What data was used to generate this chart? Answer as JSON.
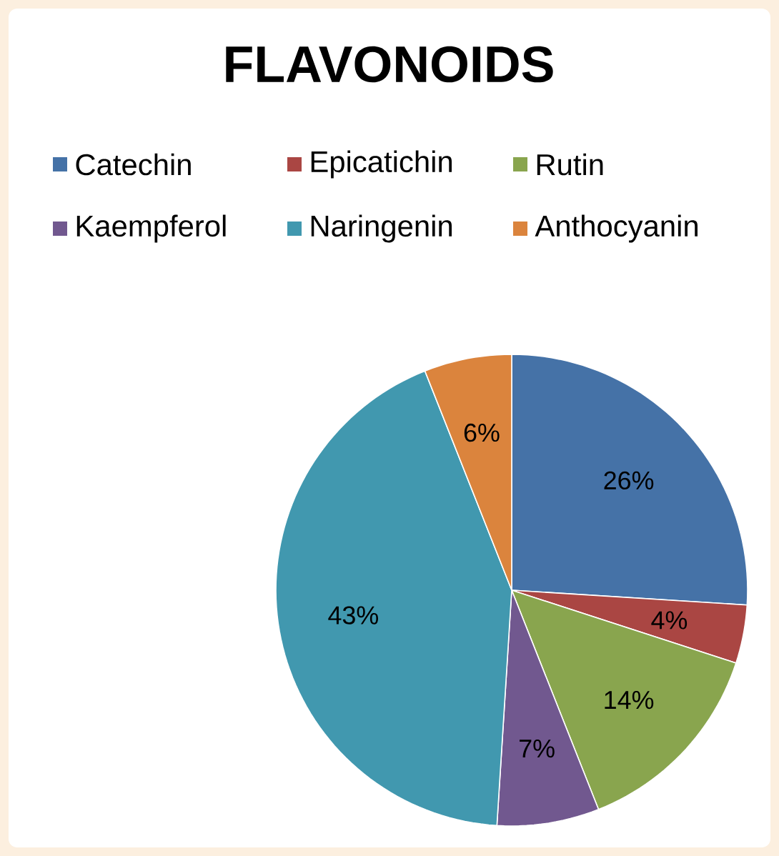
{
  "chart_data": {
    "type": "pie",
    "title": "FLAVONOIDS",
    "categories": [
      "Catechin",
      "Epicatichin",
      "Rutin",
      "Kaempferol",
      "Naringenin",
      "Anthocyanin"
    ],
    "values": [
      26,
      4,
      14,
      7,
      43,
      6
    ],
    "colors": [
      "#4572a7",
      "#aa4643",
      "#89a54e",
      "#71588f",
      "#4198af",
      "#db843d"
    ],
    "value_labels": [
      "26%",
      "4%",
      "14%",
      "7%",
      "43%",
      "6%"
    ],
    "legend": "top"
  }
}
